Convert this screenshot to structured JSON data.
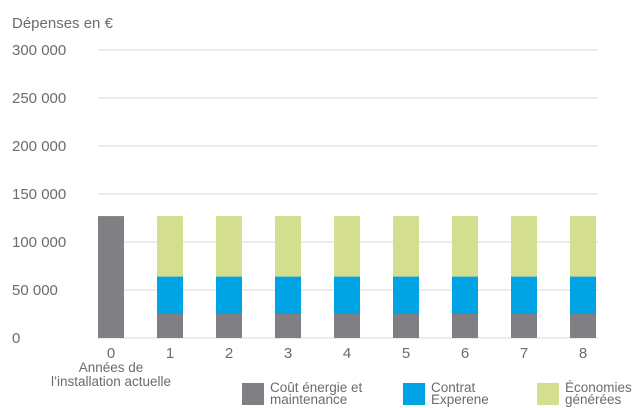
{
  "chart_data": {
    "type": "bar",
    "stacked": true,
    "title": "",
    "ylabel": "Dépenses en €",
    "xlabel": "",
    "ylim": [
      0,
      300000
    ],
    "yticks": [
      0,
      50000,
      100000,
      150000,
      200000,
      250000,
      300000
    ],
    "ytick_labels": [
      "0",
      "50 000",
      "100 000",
      "150 000",
      "200 000",
      "250 000",
      "300 000"
    ],
    "categories": [
      "0",
      "1",
      "2",
      "3",
      "4",
      "5",
      "6",
      "7",
      "8"
    ],
    "category_note": [
      "Années de",
      "l’installation actuelle"
    ],
    "series": [
      {
        "name": "Coût énergie et maintenance",
        "legend_lines": [
          "Coût énergie et",
          "maintenance"
        ],
        "color": "#808084",
        "values": [
          127000,
          25000,
          25000,
          25000,
          25000,
          25000,
          25000,
          25000,
          25000
        ]
      },
      {
        "name": "Contrat Experene",
        "legend_lines": [
          "Contrat",
          "Experene"
        ],
        "color": "#00a4e4",
        "values": [
          0,
          39000,
          39000,
          39000,
          39000,
          39000,
          39000,
          39000,
          39000
        ]
      },
      {
        "name": "Économies générées",
        "legend_lines": [
          "Économies",
          "générées"
        ],
        "color": "#d3df8f",
        "values": [
          0,
          63000,
          63000,
          63000,
          63000,
          63000,
          63000,
          63000,
          63000
        ]
      }
    ],
    "grid": true,
    "legend_position": "bottom"
  }
}
